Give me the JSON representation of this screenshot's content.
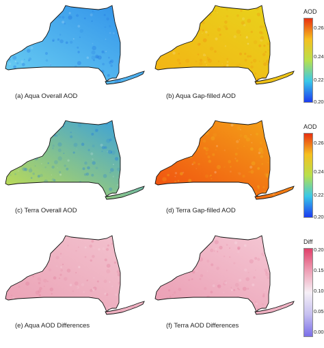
{
  "panels": [
    {
      "caption": "(a) Aqua Overall AOD",
      "gradient": [
        "#6cd0f2",
        "#2e8fe9"
      ],
      "mottle": "#1e6fe0"
    },
    {
      "caption": "(b) Aqua Gap-filled AOD",
      "gradient": [
        "#f4b214",
        "#e7d51c"
      ],
      "mottle": "#f08a10"
    },
    {
      "caption": "(c) Terra Overall AOD",
      "gradient": [
        "#c8e04a",
        "#2f9ce6"
      ],
      "mottle": "#1f78e0"
    },
    {
      "caption": "(d) Terra Gap-filled AOD",
      "gradient": [
        "#f04c10",
        "#f4a918"
      ],
      "mottle": "#f0c020"
    },
    {
      "caption": "(e) Aqua AOD Differences",
      "gradient": [
        "#eaa0b4",
        "#f3c4d0"
      ],
      "mottle": "#e07a98"
    },
    {
      "caption": "(f) Terra AOD Differences",
      "gradient": [
        "#ea9cb2",
        "#f5cad6"
      ],
      "mottle": "#e27c9a"
    }
  ],
  "legends": [
    {
      "title": "AOD",
      "ticks": [
        "0.264",
        "0.242",
        "0.222",
        "0.200"
      ],
      "colors": [
        "#e83010",
        "#f5c020",
        "#b8e04c",
        "#39c8e8",
        "#1c3cf0"
      ]
    },
    {
      "title": "AOD",
      "ticks": [
        "0.264",
        "0.242",
        "0.222",
        "0.200"
      ],
      "colors": [
        "#e83010",
        "#f5c020",
        "#b8e04c",
        "#39c8e8",
        "#1c3cf0"
      ]
    },
    {
      "title": "Diff",
      "ticks": [
        "0.200",
        "0.150",
        "0.100",
        "0.050",
        "0.000"
      ],
      "colors": [
        "#e0406a",
        "#ee9fb5",
        "#f6f0f6",
        "#c6c0f0",
        "#7a6ee8"
      ]
    }
  ]
}
